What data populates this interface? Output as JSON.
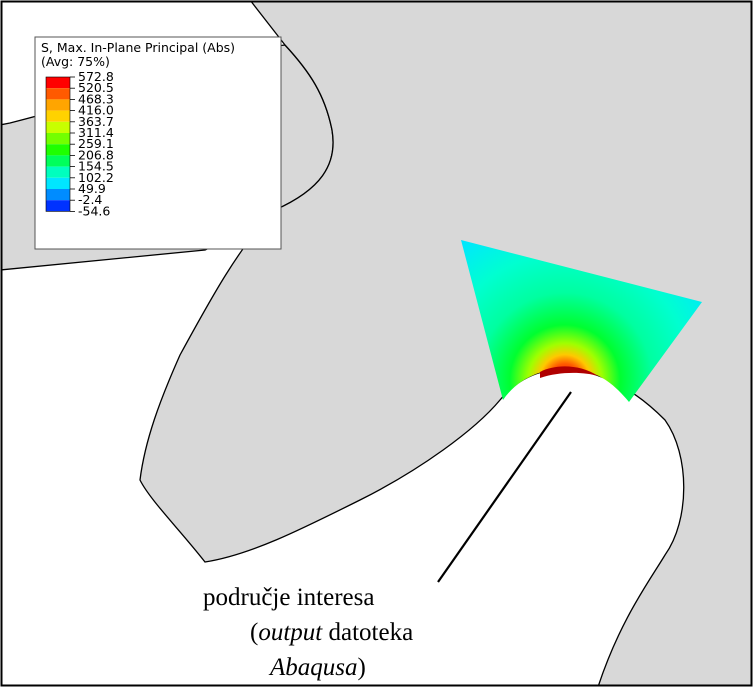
{
  "legend": {
    "title_line1": "S, Max. In-Plane Principal (Abs)",
    "title_line2": "(Avg: 75%)",
    "values": [
      "572.8",
      "520.5",
      "468.3",
      "416.0",
      "363.7",
      "311.4",
      "259.1",
      "206.8",
      "154.5",
      "102.2",
      "49.9",
      "-2.4",
      "-54.6"
    ],
    "colors": [
      "#ff0000",
      "#ff5a00",
      "#ffa500",
      "#ffd200",
      "#c8ff00",
      "#73ff00",
      "#1eff00",
      "#00ff5a",
      "#00ffbe",
      "#00e6ff",
      "#008cff",
      "#0032ff"
    ]
  },
  "caption": {
    "line1": "područje interesa",
    "line2_open": "(",
    "line2_italic": "output",
    "line2_rest": " datoteka",
    "line3_italic": "Abaqusa",
    "line3_close": ")"
  },
  "colors": {
    "part_fill": "#d8d8d8",
    "background": "#ffffff",
    "outline": "#000000"
  }
}
